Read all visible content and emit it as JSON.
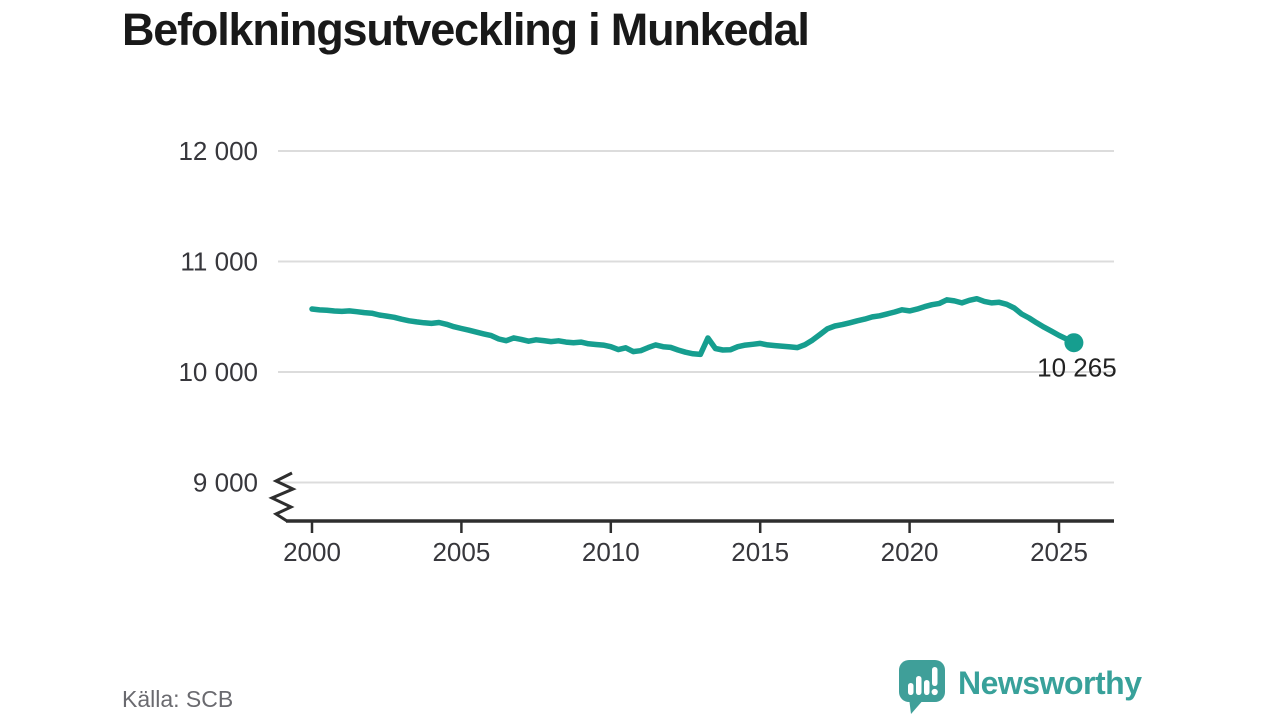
{
  "title": "Befolkningsutveckling i Munkedal",
  "source": "Källa: SCB",
  "footer": {
    "brand": "Newsworthy"
  },
  "chart_data": {
    "type": "line",
    "title": "Befolkningsutveckling i Munkedal",
    "xlabel": "",
    "ylabel": "",
    "xlim": [
      1998.9,
      2026.9
    ],
    "ylim": [
      9000,
      12000
    ],
    "y_axis_break": true,
    "grid": "horizontal",
    "legend": "none",
    "y_ticks": [
      {
        "value": 12000,
        "label": "12 000"
      },
      {
        "value": 11000,
        "label": "11 000"
      },
      {
        "value": 10000,
        "label": "10 000"
      },
      {
        "value": 9000,
        "label": "9 000"
      }
    ],
    "x_ticks": [
      {
        "value": 2000,
        "label": "2000"
      },
      {
        "value": 2005,
        "label": "2005"
      },
      {
        "value": 2010,
        "label": "2010"
      },
      {
        "value": 2015,
        "label": "2015"
      },
      {
        "value": 2020,
        "label": "2020"
      },
      {
        "value": 2025,
        "label": "2025"
      }
    ],
    "end_label": "10 265",
    "last_point": {
      "x": 2025.5,
      "y": 10265
    },
    "colors": {
      "line": "#169e8f",
      "marker": "#169e8f",
      "grid": "#dcdcdc",
      "axis": "#2e2e2e",
      "logo": "#3f9f99",
      "brand_text": "#38a19a"
    },
    "series": [
      {
        "name": "Befolkning",
        "points": [
          [
            2000.0,
            10570
          ],
          [
            2000.25,
            10562
          ],
          [
            2000.5,
            10558
          ],
          [
            2000.75,
            10552
          ],
          [
            2001.0,
            10548
          ],
          [
            2001.25,
            10553
          ],
          [
            2001.5,
            10546
          ],
          [
            2001.75,
            10538
          ],
          [
            2002.0,
            10532
          ],
          [
            2002.25,
            10516
          ],
          [
            2002.5,
            10506
          ],
          [
            2002.75,
            10495
          ],
          [
            2003.0,
            10478
          ],
          [
            2003.25,
            10463
          ],
          [
            2003.5,
            10453
          ],
          [
            2003.75,
            10445
          ],
          [
            2004.0,
            10440
          ],
          [
            2004.25,
            10448
          ],
          [
            2004.5,
            10432
          ],
          [
            2004.75,
            10410
          ],
          [
            2005.0,
            10394
          ],
          [
            2005.25,
            10378
          ],
          [
            2005.5,
            10361
          ],
          [
            2005.75,
            10345
          ],
          [
            2006.0,
            10329
          ],
          [
            2006.25,
            10299
          ],
          [
            2006.5,
            10283
          ],
          [
            2006.75,
            10309
          ],
          [
            2007.0,
            10295
          ],
          [
            2007.25,
            10279
          ],
          [
            2007.5,
            10291
          ],
          [
            2007.75,
            10284
          ],
          [
            2008.0,
            10275
          ],
          [
            2008.25,
            10282
          ],
          [
            2008.5,
            10271
          ],
          [
            2008.75,
            10265
          ],
          [
            2009.0,
            10271
          ],
          [
            2009.25,
            10255
          ],
          [
            2009.5,
            10249
          ],
          [
            2009.75,
            10243
          ],
          [
            2010.0,
            10229
          ],
          [
            2010.25,
            10203
          ],
          [
            2010.5,
            10219
          ],
          [
            2010.75,
            10185
          ],
          [
            2011.0,
            10193
          ],
          [
            2011.25,
            10221
          ],
          [
            2011.5,
            10245
          ],
          [
            2011.75,
            10229
          ],
          [
            2012.0,
            10223
          ],
          [
            2012.25,
            10199
          ],
          [
            2012.5,
            10179
          ],
          [
            2012.75,
            10165
          ],
          [
            2013.0,
            10159
          ],
          [
            2013.25,
            10308
          ],
          [
            2013.5,
            10213
          ],
          [
            2013.75,
            10199
          ],
          [
            2014.0,
            10201
          ],
          [
            2014.25,
            10229
          ],
          [
            2014.5,
            10243
          ],
          [
            2014.75,
            10251
          ],
          [
            2015.0,
            10259
          ],
          [
            2015.25,
            10245
          ],
          [
            2015.5,
            10239
          ],
          [
            2015.75,
            10233
          ],
          [
            2016.0,
            10227
          ],
          [
            2016.25,
            10221
          ],
          [
            2016.5,
            10247
          ],
          [
            2016.75,
            10289
          ],
          [
            2017.0,
            10339
          ],
          [
            2017.25,
            10391
          ],
          [
            2017.5,
            10416
          ],
          [
            2017.75,
            10429
          ],
          [
            2018.0,
            10445
          ],
          [
            2018.25,
            10463
          ],
          [
            2018.5,
            10479
          ],
          [
            2018.75,
            10499
          ],
          [
            2019.0,
            10509
          ],
          [
            2019.25,
            10526
          ],
          [
            2019.5,
            10543
          ],
          [
            2019.75,
            10563
          ],
          [
            2020.0,
            10553
          ],
          [
            2020.25,
            10569
          ],
          [
            2020.5,
            10591
          ],
          [
            2020.75,
            10609
          ],
          [
            2021.0,
            10621
          ],
          [
            2021.25,
            10653
          ],
          [
            2021.5,
            10643
          ],
          [
            2021.75,
            10625
          ],
          [
            2022.0,
            10649
          ],
          [
            2022.25,
            10663
          ],
          [
            2022.5,
            10639
          ],
          [
            2022.75,
            10625
          ],
          [
            2023.0,
            10631
          ],
          [
            2023.25,
            10613
          ],
          [
            2023.5,
            10579
          ],
          [
            2023.75,
            10525
          ],
          [
            2024.0,
            10489
          ],
          [
            2024.25,
            10445
          ],
          [
            2024.5,
            10405
          ],
          [
            2024.75,
            10369
          ],
          [
            2025.0,
            10331
          ],
          [
            2025.25,
            10299
          ],
          [
            2025.5,
            10265
          ]
        ]
      }
    ]
  }
}
